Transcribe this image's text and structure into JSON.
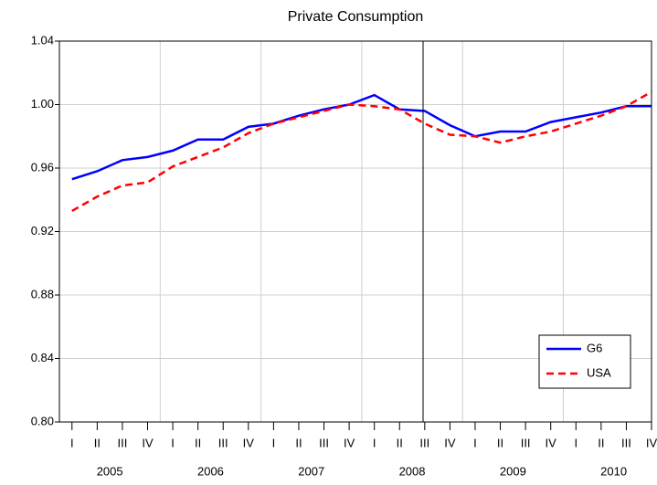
{
  "chart_data": {
    "type": "line",
    "title": "Private Consumption",
    "categories": [
      "I",
      "II",
      "III",
      "IV",
      "I",
      "II",
      "III",
      "IV",
      "I",
      "II",
      "III",
      "IV",
      "I",
      "II",
      "III",
      "IV",
      "I",
      "II",
      "III",
      "IV",
      "I",
      "II",
      "III",
      "IV"
    ],
    "years": [
      "2005",
      "2006",
      "2007",
      "2008",
      "2009",
      "2010"
    ],
    "series": [
      {
        "name": "G6",
        "color": "#0000ff",
        "dashed": false,
        "values": [
          0.953,
          0.958,
          0.965,
          0.967,
          0.971,
          0.978,
          0.978,
          0.986,
          0.988,
          0.993,
          0.997,
          1.0,
          1.006,
          0.997,
          0.996,
          0.987,
          0.98,
          0.983,
          0.983,
          0.989,
          0.992,
          0.995,
          0.999,
          0.999
        ]
      },
      {
        "name": "USA",
        "color": "#ff0000",
        "dashed": true,
        "values": [
          0.933,
          0.942,
          0.949,
          0.951,
          0.961,
          0.967,
          0.973,
          0.982,
          0.988,
          0.992,
          0.996,
          1.0,
          0.999,
          0.997,
          0.988,
          0.981,
          0.98,
          0.976,
          0.98,
          0.983,
          0.988,
          0.993,
          0.999,
          1.008
        ]
      }
    ],
    "ylim": [
      0.8,
      1.04
    ],
    "yticks": [
      {
        "value": 0.8,
        "label": "0.80"
      },
      0.84,
      0.88,
      0.92,
      0.96,
      {
        "value": 1.0,
        "label": "1.00"
      },
      1.04
    ],
    "grid": true,
    "legend": "lower right"
  }
}
